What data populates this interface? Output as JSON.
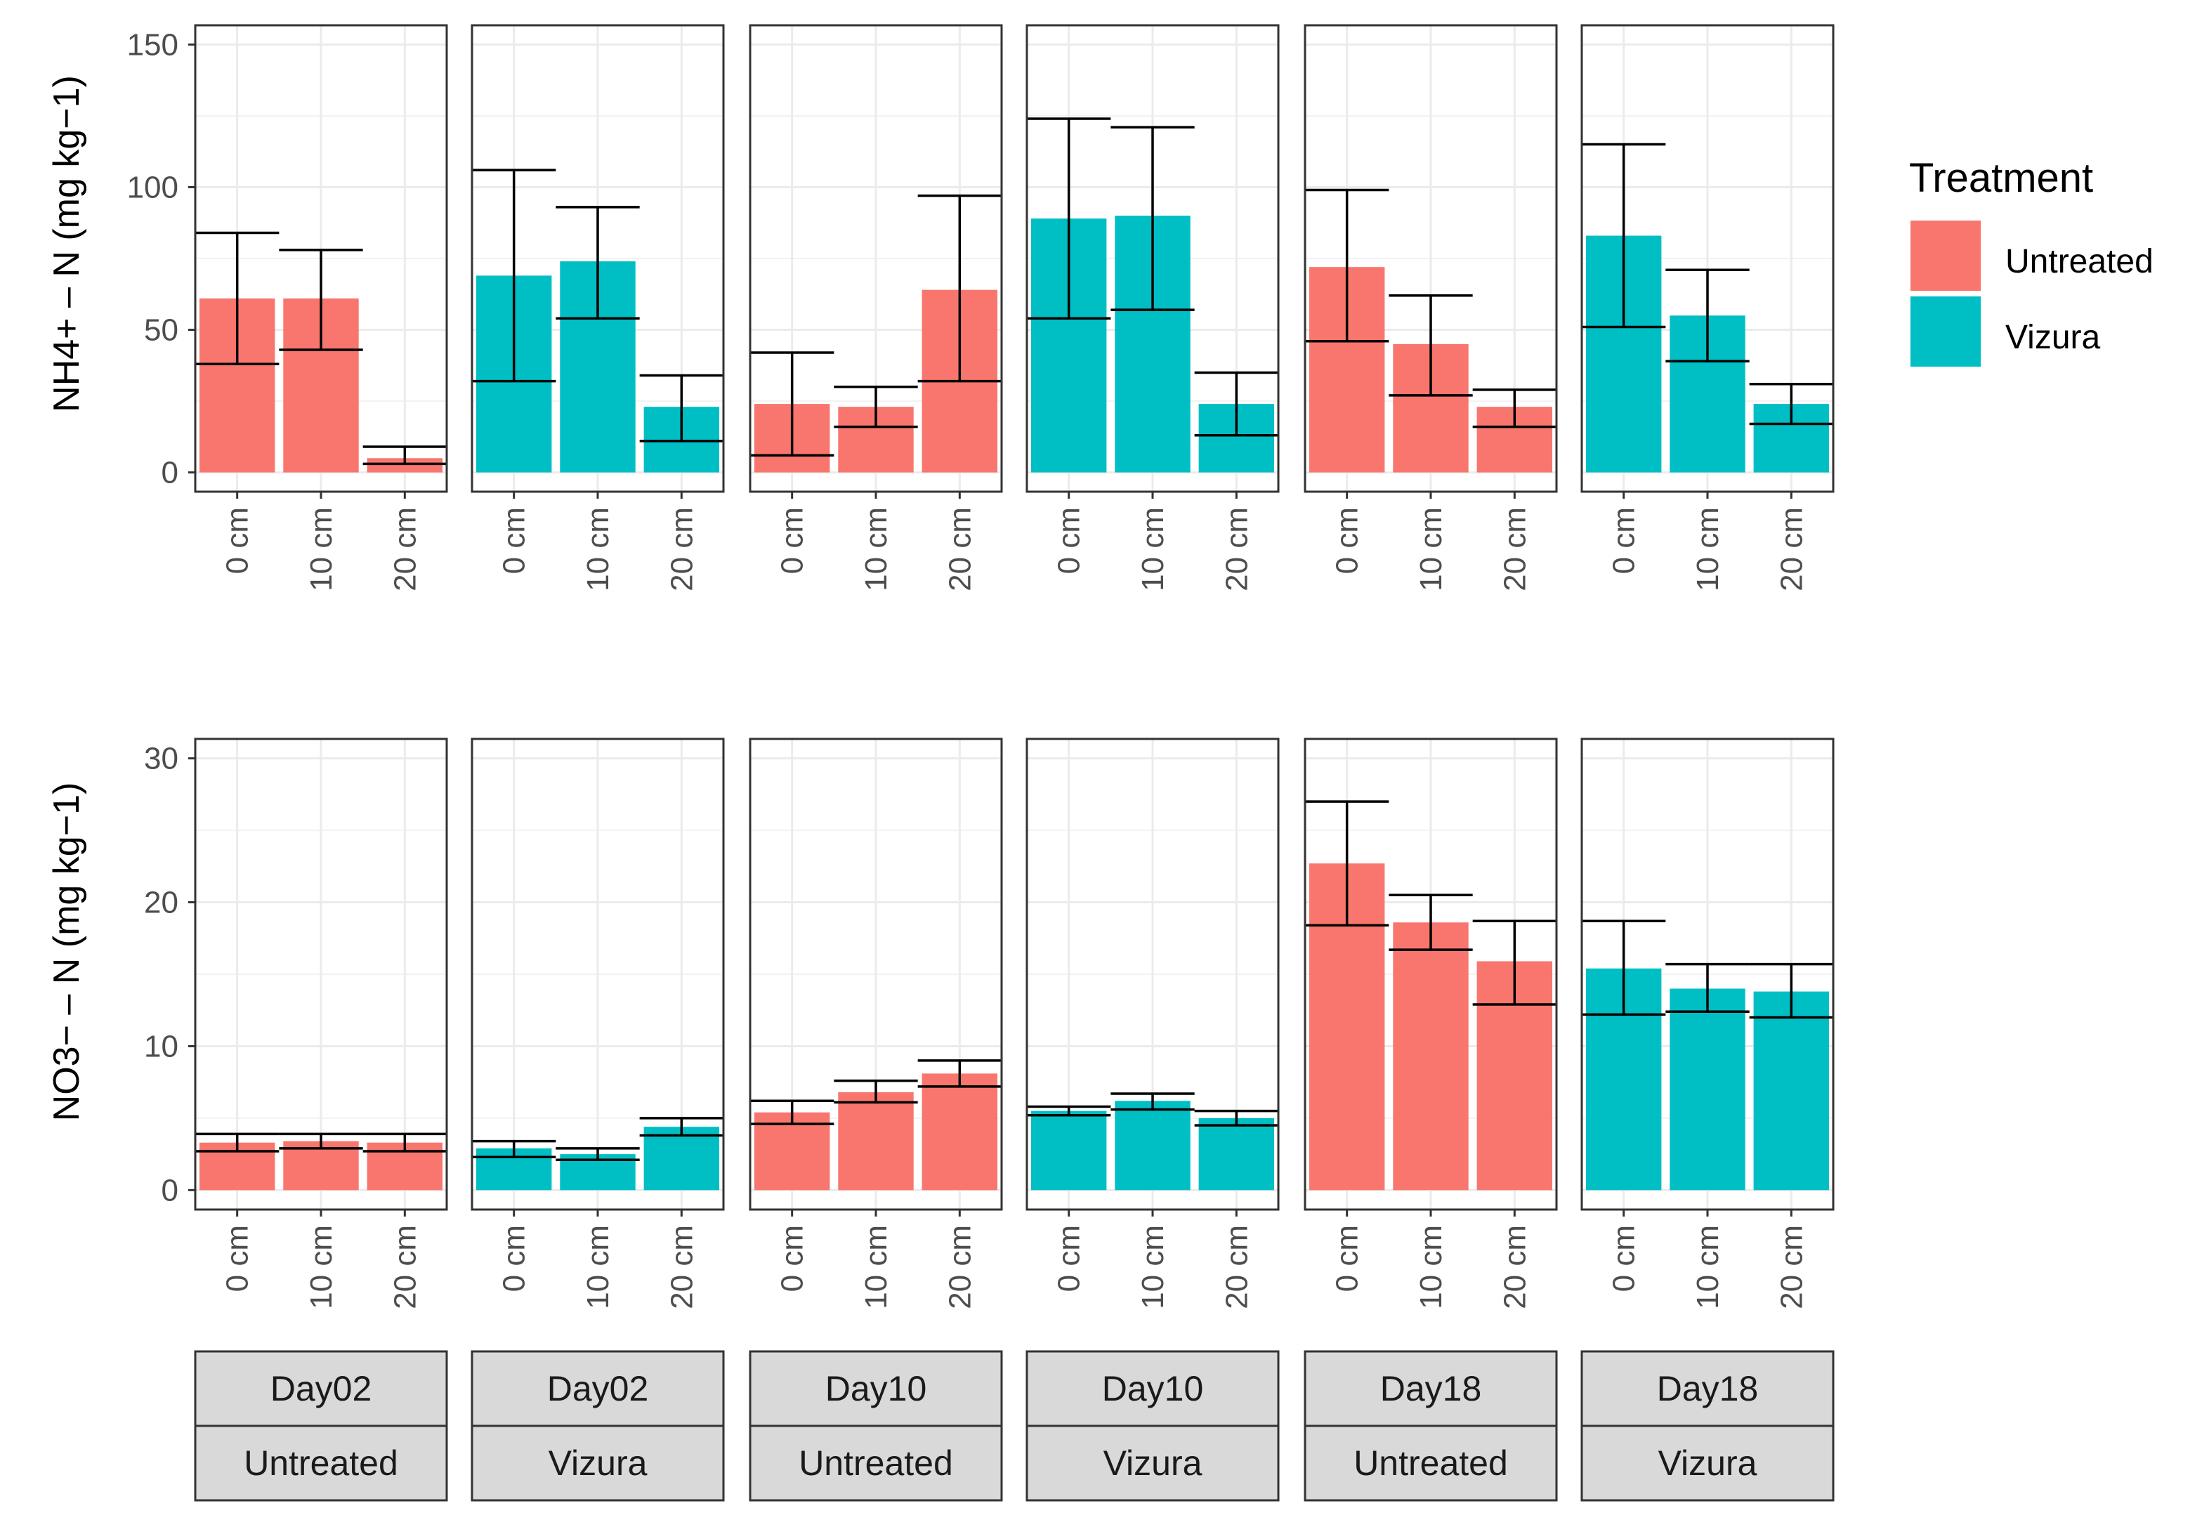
{
  "chart_data": {
    "type": "bar",
    "layout": "faceted grid, 2 rows x 6 columns",
    "colors": {
      "Untreated": "#F8766D",
      "Vizura": "#00BFC4"
    },
    "categories": [
      "0 cm",
      "10 cm",
      "20 cm"
    ],
    "panels": [
      {
        "day": "Day02",
        "treatment": "Untreated"
      },
      {
        "day": "Day02",
        "treatment": "Vizura"
      },
      {
        "day": "Day10",
        "treatment": "Untreated"
      },
      {
        "day": "Day10",
        "treatment": "Vizura"
      },
      {
        "day": "Day18",
        "treatment": "Untreated"
      },
      {
        "day": "Day18",
        "treatment": "Vizura"
      }
    ],
    "rows": [
      {
        "ylabel": "NH4+ – N (mg kg−1)",
        "ylim": [
          0,
          150
        ],
        "yticks": [
          "0",
          "50",
          "100",
          "150"
        ],
        "data": [
          {
            "values": [
              61,
              61,
              5
            ],
            "lower": [
              38,
              43,
              3
            ],
            "upper": [
              84,
              78,
              9
            ]
          },
          {
            "values": [
              69,
              74,
              23
            ],
            "lower": [
              32,
              54,
              11
            ],
            "upper": [
              106,
              93,
              34
            ]
          },
          {
            "values": [
              24,
              23,
              64
            ],
            "lower": [
              6,
              16,
              32
            ],
            "upper": [
              42,
              30,
              97
            ]
          },
          {
            "values": [
              89,
              90,
              24
            ],
            "lower": [
              54,
              57,
              13
            ],
            "upper": [
              124,
              121,
              35
            ]
          },
          {
            "values": [
              72,
              45,
              23
            ],
            "lower": [
              46,
              27,
              16
            ],
            "upper": [
              99,
              62,
              29
            ]
          },
          {
            "values": [
              83,
              55,
              24
            ],
            "lower": [
              51,
              39,
              17
            ],
            "upper": [
              115,
              71,
              31
            ]
          }
        ]
      },
      {
        "ylabel": "NO3− – N (mg kg−1)",
        "ylim": [
          0,
          30
        ],
        "yticks": [
          "0",
          "10",
          "20",
          "30"
        ],
        "data": [
          {
            "values": [
              3.3,
              3.4,
              3.3
            ],
            "lower": [
              2.7,
              2.9,
              2.7
            ],
            "upper": [
              3.9,
              3.9,
              3.9
            ]
          },
          {
            "values": [
              2.9,
              2.5,
              4.4
            ],
            "lower": [
              2.3,
              2.1,
              3.8
            ],
            "upper": [
              3.4,
              2.9,
              5.0
            ]
          },
          {
            "values": [
              5.4,
              6.8,
              8.1
            ],
            "lower": [
              4.6,
              6.1,
              7.2
            ],
            "upper": [
              6.2,
              7.6,
              9.0
            ]
          },
          {
            "values": [
              5.5,
              6.2,
              5.0
            ],
            "lower": [
              5.2,
              5.6,
              4.5
            ],
            "upper": [
              5.8,
              6.7,
              5.5
            ]
          },
          {
            "values": [
              22.7,
              18.6,
              15.9
            ],
            "lower": [
              18.4,
              16.7,
              12.9
            ],
            "upper": [
              27.0,
              20.5,
              18.7
            ]
          },
          {
            "values": [
              15.4,
              14.0,
              13.8
            ],
            "lower": [
              12.2,
              12.4,
              12.0
            ],
            "upper": [
              18.7,
              15.7,
              15.7
            ]
          }
        ]
      }
    ],
    "legend": {
      "title": "Treatment",
      "position": "right",
      "items": [
        "Untreated",
        "Vizura"
      ]
    }
  }
}
